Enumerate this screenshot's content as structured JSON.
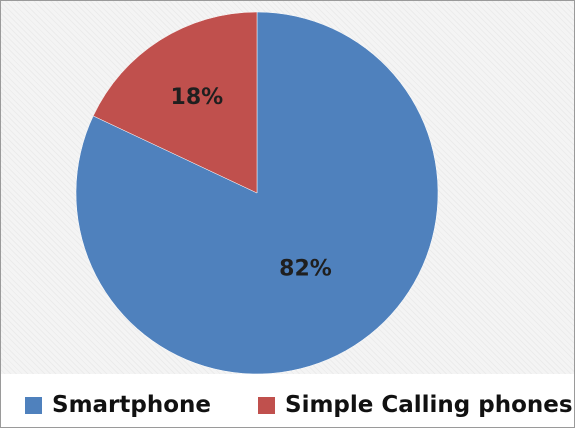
{
  "chart_data": {
    "type": "pie",
    "slices": [
      {
        "name": "Smartphone",
        "value": 82,
        "label": "82%",
        "color": "#4f81bd"
      },
      {
        "name": "Simple Calling phones",
        "value": 18,
        "label": "18%",
        "color": "#c0504d"
      }
    ],
    "title": "",
    "legend_position": "bottom",
    "start": "12 o'clock",
    "direction": "clockwise"
  },
  "legend": {
    "items": [
      {
        "label": "Smartphone",
        "color": "#4f81bd"
      },
      {
        "label": "Simple Calling phones",
        "color": "#c0504d"
      }
    ]
  }
}
